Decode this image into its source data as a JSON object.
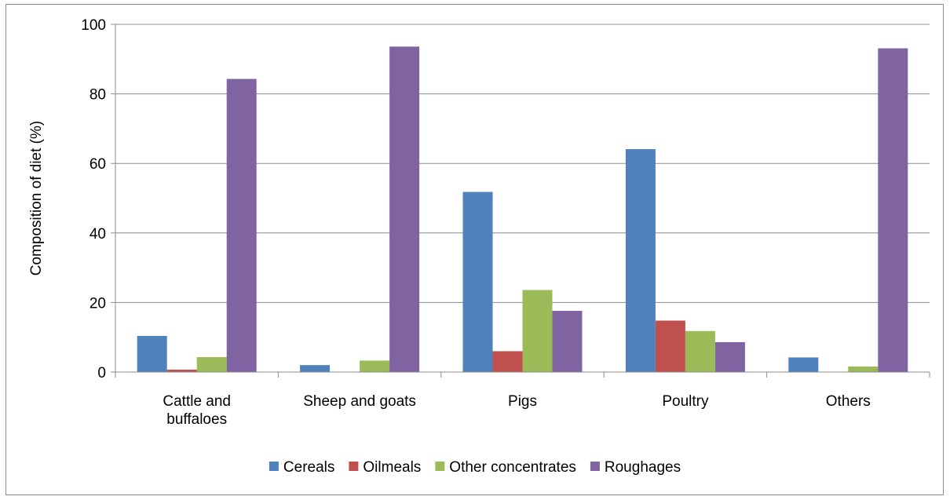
{
  "chart_data": {
    "type": "bar",
    "title": "",
    "xlabel": "",
    "ylabel": "Composition of diet (%)",
    "ylim": [
      0,
      100
    ],
    "yticks": [
      0,
      20,
      40,
      60,
      80,
      100
    ],
    "grid": true,
    "legend_position": "bottom",
    "categories": [
      [
        "Cattle and",
        "buffaloes"
      ],
      [
        "Sheep and goats"
      ],
      [
        "Pigs"
      ],
      [
        "Poultry"
      ],
      [
        "Others"
      ]
    ],
    "series": [
      {
        "name": "Cereals",
        "color": "#4F81BD",
        "values": [
          10.4,
          2.0,
          51.8,
          64.1,
          4.2
        ]
      },
      {
        "name": "Oilmeals",
        "color": "#C0504D",
        "values": [
          0.7,
          0,
          6.0,
          14.8,
          0
        ]
      },
      {
        "name": "Other concentrates",
        "color": "#9BBB59",
        "values": [
          4.3,
          3.3,
          23.6,
          11.8,
          1.6
        ]
      },
      {
        "name": "Roughages",
        "color": "#8064A2",
        "values": [
          84.3,
          93.6,
          17.6,
          8.6,
          93.1
        ]
      }
    ]
  }
}
